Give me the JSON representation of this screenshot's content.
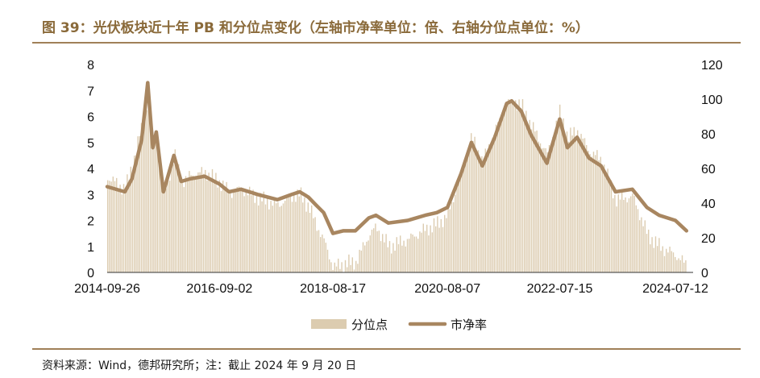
{
  "header": {
    "title": "图 39：光伏板块近十年 PB 和分位点变化（左轴市净率单位：倍、右轴分位点单位：%）"
  },
  "footer": {
    "source": "资料来源：Wind，德邦研究所；注：截止 2024 年 9 月 20 日"
  },
  "colors": {
    "title": "#8a6a3a",
    "rule": "#a08058",
    "pb_line": "#a88660",
    "percentile_bar": "#dcccb0"
  },
  "chart_data": {
    "type": "line+bar",
    "x_ticks": [
      "2014-09-26",
      "2016-09-02",
      "2018-08-17",
      "2020-08-07",
      "2022-07-15",
      "2024-07-12"
    ],
    "y_left": {
      "ticks": [
        "0",
        "1",
        "2",
        "3",
        "4",
        "5",
        "6",
        "7",
        "8"
      ],
      "lim": [
        0,
        8
      ]
    },
    "y_right": {
      "ticks": [
        "0",
        "20",
        "40",
        "60",
        "80",
        "100",
        "120"
      ],
      "lim": [
        0,
        120
      ]
    },
    "legend": {
      "position": "bottom",
      "bar_label": "分位点",
      "line_label": "市净率"
    },
    "series": [
      {
        "name": "市净率",
        "axis": "left",
        "type": "line",
        "x": [
          "2014-09-26",
          "2015-01-15",
          "2015-03-01",
          "2015-05-01",
          "2015-06-08",
          "2015-07-10",
          "2015-08-01",
          "2015-09-15",
          "2015-11-20",
          "2016-01-05",
          "2016-03-01",
          "2016-06-01",
          "2016-09-02",
          "2016-11-01",
          "2017-01-15",
          "2017-05-01",
          "2017-09-01",
          "2017-12-01",
          "2018-01-20",
          "2018-03-15",
          "2018-05-01",
          "2018-06-20",
          "2018-08-17",
          "2018-10-20",
          "2019-01-05",
          "2019-04-01",
          "2019-05-15",
          "2019-08-01",
          "2019-12-01",
          "2020-03-20",
          "2020-06-01",
          "2020-08-07",
          "2020-11-01",
          "2021-01-05",
          "2021-03-15",
          "2021-06-01",
          "2021-08-15",
          "2021-09-15",
          "2021-11-15",
          "2022-01-15",
          "2022-04-25",
          "2022-07-15",
          "2022-09-01",
          "2022-11-01",
          "2023-01-15",
          "2023-04-01",
          "2023-07-01",
          "2023-10-15",
          "2024-01-15",
          "2024-04-01",
          "2024-07-12",
          "2024-09-20"
        ],
        "y": [
          3.3,
          3.1,
          3.6,
          5.1,
          7.3,
          4.8,
          5.4,
          3.1,
          4.5,
          3.5,
          3.6,
          3.7,
          3.4,
          3.1,
          3.2,
          3.0,
          2.8,
          3.0,
          3.1,
          2.9,
          2.6,
          2.3,
          1.5,
          1.6,
          1.6,
          2.1,
          2.2,
          1.9,
          2.0,
          2.2,
          2.3,
          2.5,
          3.8,
          5.0,
          4.1,
          5.2,
          6.5,
          6.6,
          6.2,
          5.3,
          4.2,
          5.9,
          4.8,
          5.2,
          4.4,
          4.1,
          3.1,
          3.2,
          2.5,
          2.2,
          2.0,
          1.6
        ]
      },
      {
        "name": "分位点",
        "axis": "right",
        "type": "bar",
        "x": [
          "2014-09-26",
          "2015-01-15",
          "2015-03-01",
          "2015-05-01",
          "2015-06-08",
          "2015-07-10",
          "2015-08-01",
          "2015-09-15",
          "2015-11-20",
          "2016-01-05",
          "2016-03-01",
          "2016-06-01",
          "2016-09-02",
          "2016-11-01",
          "2017-01-15",
          "2017-05-01",
          "2017-09-01",
          "2017-12-01",
          "2018-01-20",
          "2018-03-15",
          "2018-05-01",
          "2018-06-20",
          "2018-08-17",
          "2018-10-20",
          "2019-01-05",
          "2019-04-01",
          "2019-05-15",
          "2019-08-01",
          "2019-12-01",
          "2020-03-20",
          "2020-06-01",
          "2020-08-07",
          "2020-11-01",
          "2021-01-05",
          "2021-03-15",
          "2021-06-01",
          "2021-08-15",
          "2021-09-15",
          "2021-11-15",
          "2022-01-15",
          "2022-04-25",
          "2022-07-15",
          "2022-09-01",
          "2022-11-01",
          "2023-01-15",
          "2023-04-01",
          "2023-07-01",
          "2023-10-15",
          "2024-01-15",
          "2024-04-01",
          "2024-07-12",
          "2024-09-20"
        ],
        "y": [
          55,
          48,
          62,
          85,
          100,
          75,
          82,
          45,
          68,
          52,
          56,
          58,
          52,
          46,
          48,
          43,
          39,
          44,
          45,
          38,
          28,
          18,
          3,
          5,
          6,
          22,
          26,
          15,
          19,
          25,
          28,
          33,
          58,
          78,
          63,
          82,
          98,
          100,
          96,
          85,
          68,
          93,
          78,
          82,
          70,
          65,
          42,
          44,
          22,
          15,
          10,
          4
        ]
      }
    ]
  }
}
